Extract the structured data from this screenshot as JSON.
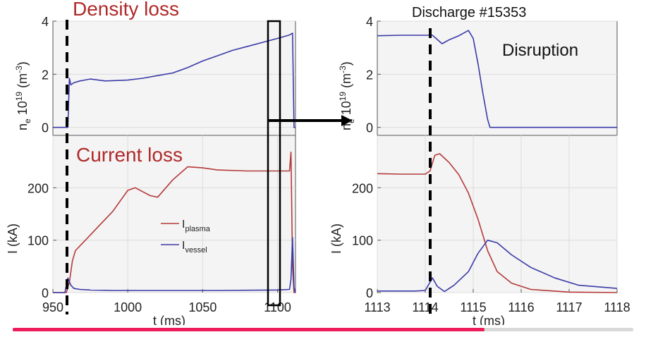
{
  "chart_data": [
    {
      "type": "line",
      "panel": "left-top",
      "title": "Density loss",
      "ylabel": "ne 10^19 (m^-3)",
      "xlim": [
        950,
        1112
      ],
      "ylim": [
        -0.3,
        4
      ],
      "yticks": [
        "0",
        "2",
        "4"
      ],
      "series": [
        {
          "name": "",
          "color": "#3a3aa8",
          "x": [
            950,
            960,
            961,
            962,
            964,
            968,
            975,
            985,
            1000,
            1010,
            1020,
            1030,
            1040,
            1050,
            1060,
            1070,
            1080,
            1090,
            1100,
            1108,
            1110,
            1111,
            1112
          ],
          "y": [
            0,
            0,
            1.85,
            1.6,
            1.68,
            1.75,
            1.82,
            1.75,
            1.78,
            1.85,
            1.95,
            2.05,
            2.25,
            2.5,
            2.7,
            2.9,
            3.05,
            3.2,
            3.35,
            3.48,
            3.55,
            0,
            0
          ]
        }
      ]
    },
    {
      "type": "line",
      "panel": "left-bottom",
      "title": "Current loss",
      "ylabel": "I (kA)",
      "xlabel": "t (ms)",
      "xlim": [
        950,
        1112
      ],
      "ylim": [
        0,
        300
      ],
      "yticks": [
        "0",
        "100",
        "200"
      ],
      "xticks": [
        "950",
        "1000",
        "1050",
        "1100"
      ],
      "series": [
        {
          "name": "plasma",
          "color": "#b53a3a",
          "x": [
            950,
            959,
            961,
            963,
            965,
            970,
            980,
            990,
            1000,
            1005,
            1015,
            1020,
            1030,
            1040,
            1050,
            1060,
            1080,
            1100,
            1108,
            1109,
            1110,
            1111,
            1112
          ],
          "y": [
            0,
            0,
            20,
            60,
            80,
            95,
            125,
            155,
            195,
            200,
            185,
            182,
            215,
            240,
            238,
            234,
            232,
            232,
            232,
            268,
            50,
            0,
            0
          ]
        },
        {
          "name": "vessel",
          "color": "#3a3aa8",
          "x": [
            950,
            958,
            960,
            962,
            964,
            968,
            975,
            990,
            1020,
            1060,
            1100,
            1108,
            1109,
            1110,
            1111,
            1112
          ],
          "y": [
            0,
            0,
            28,
            14,
            8,
            6,
            5,
            4,
            4,
            4,
            5,
            6,
            25,
            105,
            10,
            0
          ]
        }
      ]
    },
    {
      "type": "line",
      "panel": "right-top",
      "title": "Discharge #15353",
      "annotation": "Disruption",
      "ylabel": "ne 10^19 (m^-3)",
      "xlim": [
        1113,
        1118
      ],
      "ylim": [
        -0.3,
        4
      ],
      "yticks": [
        "0",
        "2",
        "4"
      ],
      "series": [
        {
          "name": "",
          "color": "#3a3aa8",
          "x": [
            1113,
            1113.5,
            1114,
            1114.15,
            1114.35,
            1114.5,
            1114.7,
            1114.9,
            1115.0,
            1115.1,
            1115.2,
            1115.3,
            1115.35,
            1116,
            1117,
            1118
          ],
          "y": [
            3.45,
            3.47,
            3.47,
            3.47,
            3.15,
            3.3,
            3.45,
            3.65,
            3.35,
            2.4,
            1.3,
            0.3,
            0.0,
            0.0,
            0.0,
            0.0
          ]
        }
      ]
    },
    {
      "type": "line",
      "panel": "right-bottom",
      "ylabel": "I (kA)",
      "xlabel": "t (ms)",
      "xlim": [
        1113,
        1118
      ],
      "ylim": [
        0,
        300
      ],
      "yticks": [
        "0",
        "100",
        "200"
      ],
      "xticks": [
        "1113",
        "1114",
        "1115",
        "1116",
        "1117",
        "1118"
      ],
      "series": [
        {
          "name": "",
          "color": "#b53a3a",
          "x": [
            1113,
            1113.5,
            1114,
            1114.1,
            1114.2,
            1114.3,
            1114.5,
            1114.7,
            1114.9,
            1115.1,
            1115.3,
            1115.5,
            1115.8,
            1116.2,
            1117,
            1118
          ],
          "y": [
            227,
            226,
            226,
            232,
            262,
            265,
            248,
            225,
            190,
            140,
            80,
            40,
            18,
            6,
            1,
            0
          ],
          "x_note": ""
        },
        {
          "name": "",
          "color": "#3a3aa8",
          "x": [
            1113,
            1113.8,
            1114,
            1114.15,
            1114.25,
            1114.4,
            1114.6,
            1114.9,
            1115.1,
            1115.3,
            1115.5,
            1115.8,
            1116.2,
            1116.7,
            1117.2,
            1118
          ],
          "y": [
            3,
            3,
            4,
            28,
            12,
            2,
            14,
            40,
            75,
            100,
            95,
            72,
            48,
            28,
            14,
            8
          ]
        }
      ]
    }
  ],
  "legend": {
    "plasma_label": "I",
    "plasma_sub": "plasma",
    "vessel_label": "I",
    "vessel_sub": "vessel"
  },
  "labels": {
    "density_loss": "Density loss",
    "current_loss": "Current loss",
    "discharge": "Discharge #15353",
    "disruption": "Disruption",
    "ylabel_ne_main": "n",
    "ylabel_ne_sub": "e",
    "ylabel_ne_rest": " 10",
    "ylabel_ne_sup": "19",
    "ylabel_ne_unit": " (m",
    "ylabel_ne_unitsup": "-3",
    "ylabel_ne_close": ")",
    "ylabel_i": "I (kA)",
    "xlabel": "t (ms)"
  },
  "colors": {
    "red_text": "#b02a2a",
    "plasma": "#b53a3a",
    "vessel": "#3a3aa8",
    "progress": "#ee1c5a"
  },
  "video_progress": 0.76
}
